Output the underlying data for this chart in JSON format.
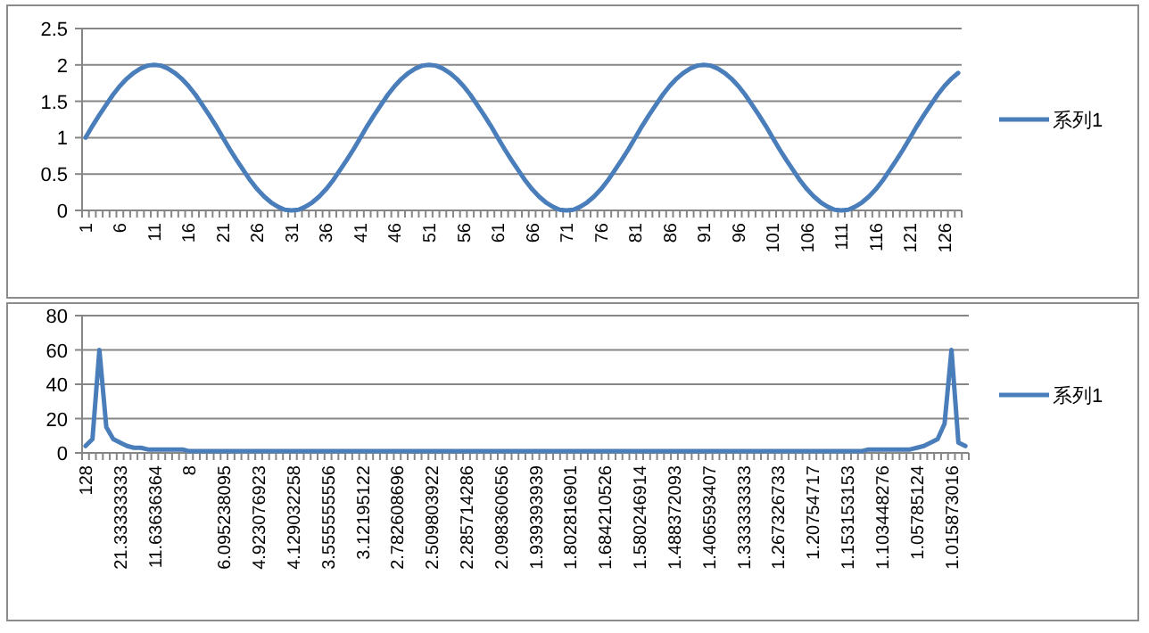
{
  "chart_data": [
    {
      "type": "line",
      "categories": [
        "1",
        null,
        null,
        null,
        null,
        "6",
        null,
        null,
        null,
        null,
        "11",
        null,
        null,
        null,
        null,
        "16",
        null,
        null,
        null,
        null,
        "21",
        null,
        null,
        null,
        null,
        "26",
        null,
        null,
        null,
        null,
        "31",
        null,
        null,
        null,
        null,
        "36",
        null,
        null,
        null,
        null,
        "41",
        null,
        null,
        null,
        null,
        "46",
        null,
        null,
        null,
        null,
        "51",
        null,
        null,
        null,
        null,
        "56",
        null,
        null,
        null,
        null,
        "61",
        null,
        null,
        null,
        null,
        "66",
        null,
        null,
        null,
        null,
        "71",
        null,
        null,
        null,
        null,
        "76",
        null,
        null,
        null,
        null,
        "81",
        null,
        null,
        null,
        null,
        "86",
        null,
        null,
        null,
        null,
        "91",
        null,
        null,
        null,
        null,
        "96",
        null,
        null,
        null,
        null,
        "101",
        null,
        null,
        null,
        null,
        "106",
        null,
        null,
        null,
        null,
        "111",
        null,
        null,
        null,
        null,
        "116",
        null,
        null,
        null,
        null,
        "121",
        null,
        null,
        null,
        null,
        "126",
        null,
        null
      ],
      "series": [
        {
          "name": "系列1",
          "color": "#4a7ebb",
          "values": [
            1,
            1.16,
            1.31,
            1.45,
            1.59,
            1.71,
            1.81,
            1.89,
            1.95,
            1.99,
            2,
            1.99,
            1.95,
            1.89,
            1.81,
            1.71,
            1.59,
            1.45,
            1.31,
            1.16,
            1,
            0.84,
            0.69,
            0.55,
            0.41,
            0.29,
            0.19,
            0.11,
            0.05,
            0.01,
            0,
            0.01,
            0.05,
            0.11,
            0.19,
            0.29,
            0.41,
            0.55,
            0.69,
            0.84,
            1,
            1.16,
            1.31,
            1.45,
            1.59,
            1.71,
            1.81,
            1.89,
            1.95,
            1.99,
            2,
            1.99,
            1.95,
            1.89,
            1.81,
            1.71,
            1.59,
            1.45,
            1.31,
            1.16,
            1,
            0.84,
            0.69,
            0.55,
            0.41,
            0.29,
            0.19,
            0.11,
            0.05,
            0.01,
            0,
            0.01,
            0.05,
            0.11,
            0.19,
            0.29,
            0.41,
            0.55,
            0.69,
            0.84,
            1,
            1.16,
            1.31,
            1.45,
            1.59,
            1.71,
            1.81,
            1.89,
            1.95,
            1.99,
            2,
            1.99,
            1.95,
            1.89,
            1.81,
            1.71,
            1.59,
            1.45,
            1.31,
            1.16,
            1,
            0.84,
            0.69,
            0.55,
            0.41,
            0.29,
            0.19,
            0.11,
            0.05,
            0.01,
            0,
            0.01,
            0.05,
            0.11,
            0.19,
            0.29,
            0.41,
            0.55,
            0.69,
            0.84,
            1,
            1.16,
            1.31,
            1.45,
            1.59,
            1.71,
            1.81,
            1.89
          ]
        }
      ],
      "ylim": [
        0,
        2.5
      ],
      "yticks": [
        0,
        0.5,
        1,
        1.5,
        2,
        2.5
      ],
      "grid": "y",
      "legend": "right"
    },
    {
      "type": "line",
      "categories": [
        "128",
        null,
        null,
        null,
        null,
        "21.33333333",
        null,
        null,
        null,
        null,
        "11.63636364",
        null,
        null,
        null,
        null,
        "8",
        null,
        null,
        null,
        null,
        "6.095238095",
        null,
        null,
        null,
        null,
        "4.923076923",
        null,
        null,
        null,
        null,
        "4.129032258",
        null,
        null,
        null,
        null,
        "3.555555556",
        null,
        null,
        null,
        null,
        "3.12195122",
        null,
        null,
        null,
        null,
        "2.782608696",
        null,
        null,
        null,
        null,
        "2.509803922",
        null,
        null,
        null,
        null,
        "2.285714286",
        null,
        null,
        null,
        null,
        "2.098360656",
        null,
        null,
        null,
        null,
        "1.939393939",
        null,
        null,
        null,
        null,
        "1.802816901",
        null,
        null,
        null,
        null,
        "1.684210526",
        null,
        null,
        null,
        null,
        "1.580246914",
        null,
        null,
        null,
        null,
        "1.488372093",
        null,
        null,
        null,
        null,
        "1.406593407",
        null,
        null,
        null,
        null,
        "1.333333333",
        null,
        null,
        null,
        null,
        "1.267326733",
        null,
        null,
        null,
        null,
        "1.20754717",
        null,
        null,
        null,
        null,
        "1.153153153",
        null,
        null,
        null,
        null,
        "1.103448276",
        null,
        null,
        null,
        null,
        "1.05785124",
        null,
        null,
        null,
        null,
        "1.015873016",
        null,
        null
      ],
      "series": [
        {
          "name": "系列1",
          "color": "#4a7ebb",
          "values": [
            4,
            8,
            60,
            15,
            8,
            6,
            4,
            3,
            3,
            2,
            2,
            2,
            2,
            2,
            2,
            1,
            1,
            1,
            1,
            1,
            1,
            1,
            1,
            1,
            1,
            1,
            1,
            1,
            1,
            1,
            1,
            1,
            1,
            1,
            1,
            1,
            1,
            1,
            1,
            1,
            1,
            1,
            1,
            1,
            1,
            1,
            1,
            1,
            1,
            1,
            1,
            1,
            1,
            1,
            1,
            1,
            1,
            1,
            1,
            1,
            1,
            1,
            1,
            1,
            1,
            1,
            1,
            1,
            1,
            1,
            1,
            1,
            1,
            1,
            1,
            1,
            1,
            1,
            1,
            1,
            1,
            1,
            1,
            1,
            1,
            1,
            1,
            1,
            1,
            1,
            1,
            1,
            1,
            1,
            1,
            1,
            1,
            1,
            1,
            1,
            1,
            1,
            1,
            1,
            1,
            1,
            1,
            1,
            1,
            1,
            1,
            1,
            1,
            2,
            2,
            2,
            2,
            2,
            2,
            2,
            3,
            4,
            6,
            8,
            17,
            60,
            6,
            4
          ]
        }
      ],
      "ylim": [
        0,
        80
      ],
      "yticks": [
        0,
        20,
        40,
        60,
        80
      ],
      "grid": "y",
      "legend": "right"
    }
  ]
}
